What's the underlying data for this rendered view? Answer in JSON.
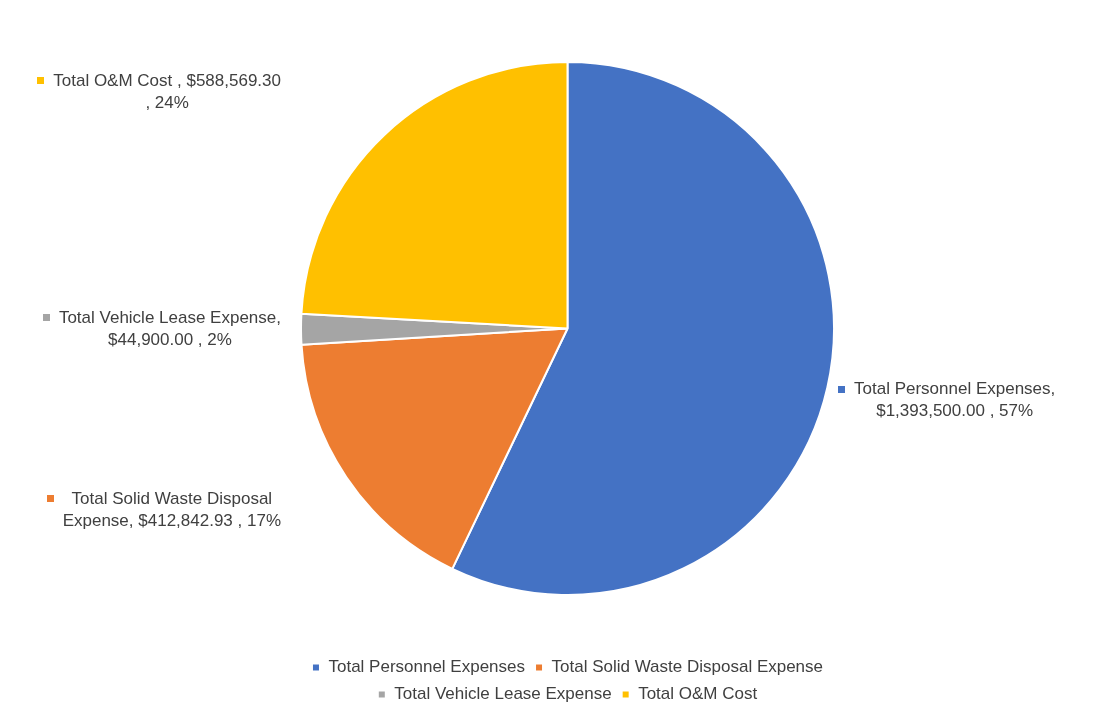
{
  "chart_data": {
    "type": "pie",
    "categories": [
      "Total Personnel Expenses",
      "Total Solid Waste Disposal Expense",
      "Total Vehicle Lease Expense",
      "Total O&M Cost"
    ],
    "values": [
      1393500.0,
      412842.93,
      44900.0,
      588569.3
    ],
    "colors": [
      "#4472c4",
      "#ed7d31",
      "#a5a5a5",
      "#ffc000"
    ],
    "value_labels": [
      "Total Personnel Expenses, $1,393,500.00 , 57%",
      "Total Solid Waste Disposal Expense, $412,842.93 , 17%",
      "Total Vehicle Lease Expense, $44,900.00 , 2%",
      "Total O&M Cost , $588,569.30 , 24%"
    ],
    "legend": "bottom"
  }
}
